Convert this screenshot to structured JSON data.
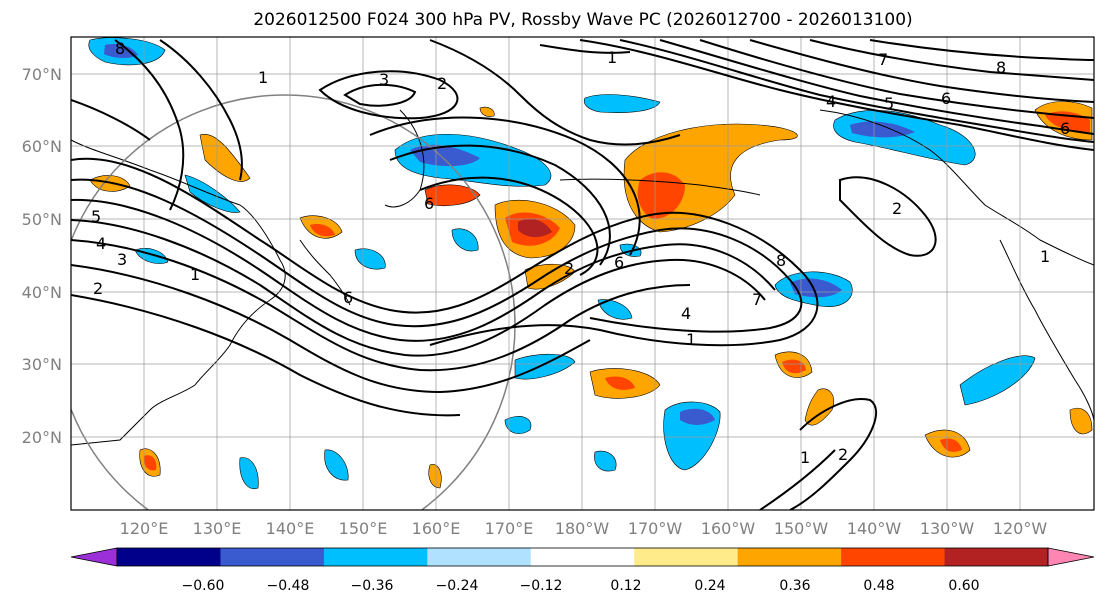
{
  "title": "2026012500 F024 300 hPa PV, Rossby Wave PC (2026012700 - 2026013100)",
  "lat_labels": [
    "70°N",
    "60°N",
    "50°N",
    "40°N",
    "30°N",
    "20°N"
  ],
  "lon_labels": [
    "120°E",
    "130°E",
    "140°E",
    "150°E",
    "160°E",
    "170°E",
    "180°W",
    "170°W",
    "160°W",
    "150°W",
    "140°W",
    "130°W",
    "120°W"
  ],
  "colorbar": {
    "ticks": [
      "−0.60",
      "−0.48",
      "−0.36",
      "−0.24",
      "−0.12",
      "0.12",
      "0.24",
      "0.36",
      "0.48",
      "0.60"
    ],
    "colors": [
      "#9b30d9",
      "#00008b",
      "#3a5bd0",
      "#00bfff",
      "#b0e2ff",
      "#ffffff",
      "#ffeb8a",
      "#ffa500",
      "#ff4500",
      "#b22222",
      "#ff85b3"
    ]
  },
  "colors": {
    "neg_strong": "#3a5bd0",
    "neg_mid": "#00bfff",
    "pos_mid": "#ffa500",
    "pos_strong": "#ff4500",
    "pos_max": "#b22222",
    "pos_weak": "#ffeb8a"
  },
  "contour_labels": [
    "1",
    "1",
    "3",
    "2",
    "7",
    "8",
    "4",
    "5",
    "6",
    "2",
    "5",
    "4",
    "3",
    "2",
    "1",
    "6",
    "1",
    "6",
    "8",
    "7",
    "4",
    "1",
    "2",
    "1",
    "8",
    "6",
    "2",
    "6"
  ]
}
